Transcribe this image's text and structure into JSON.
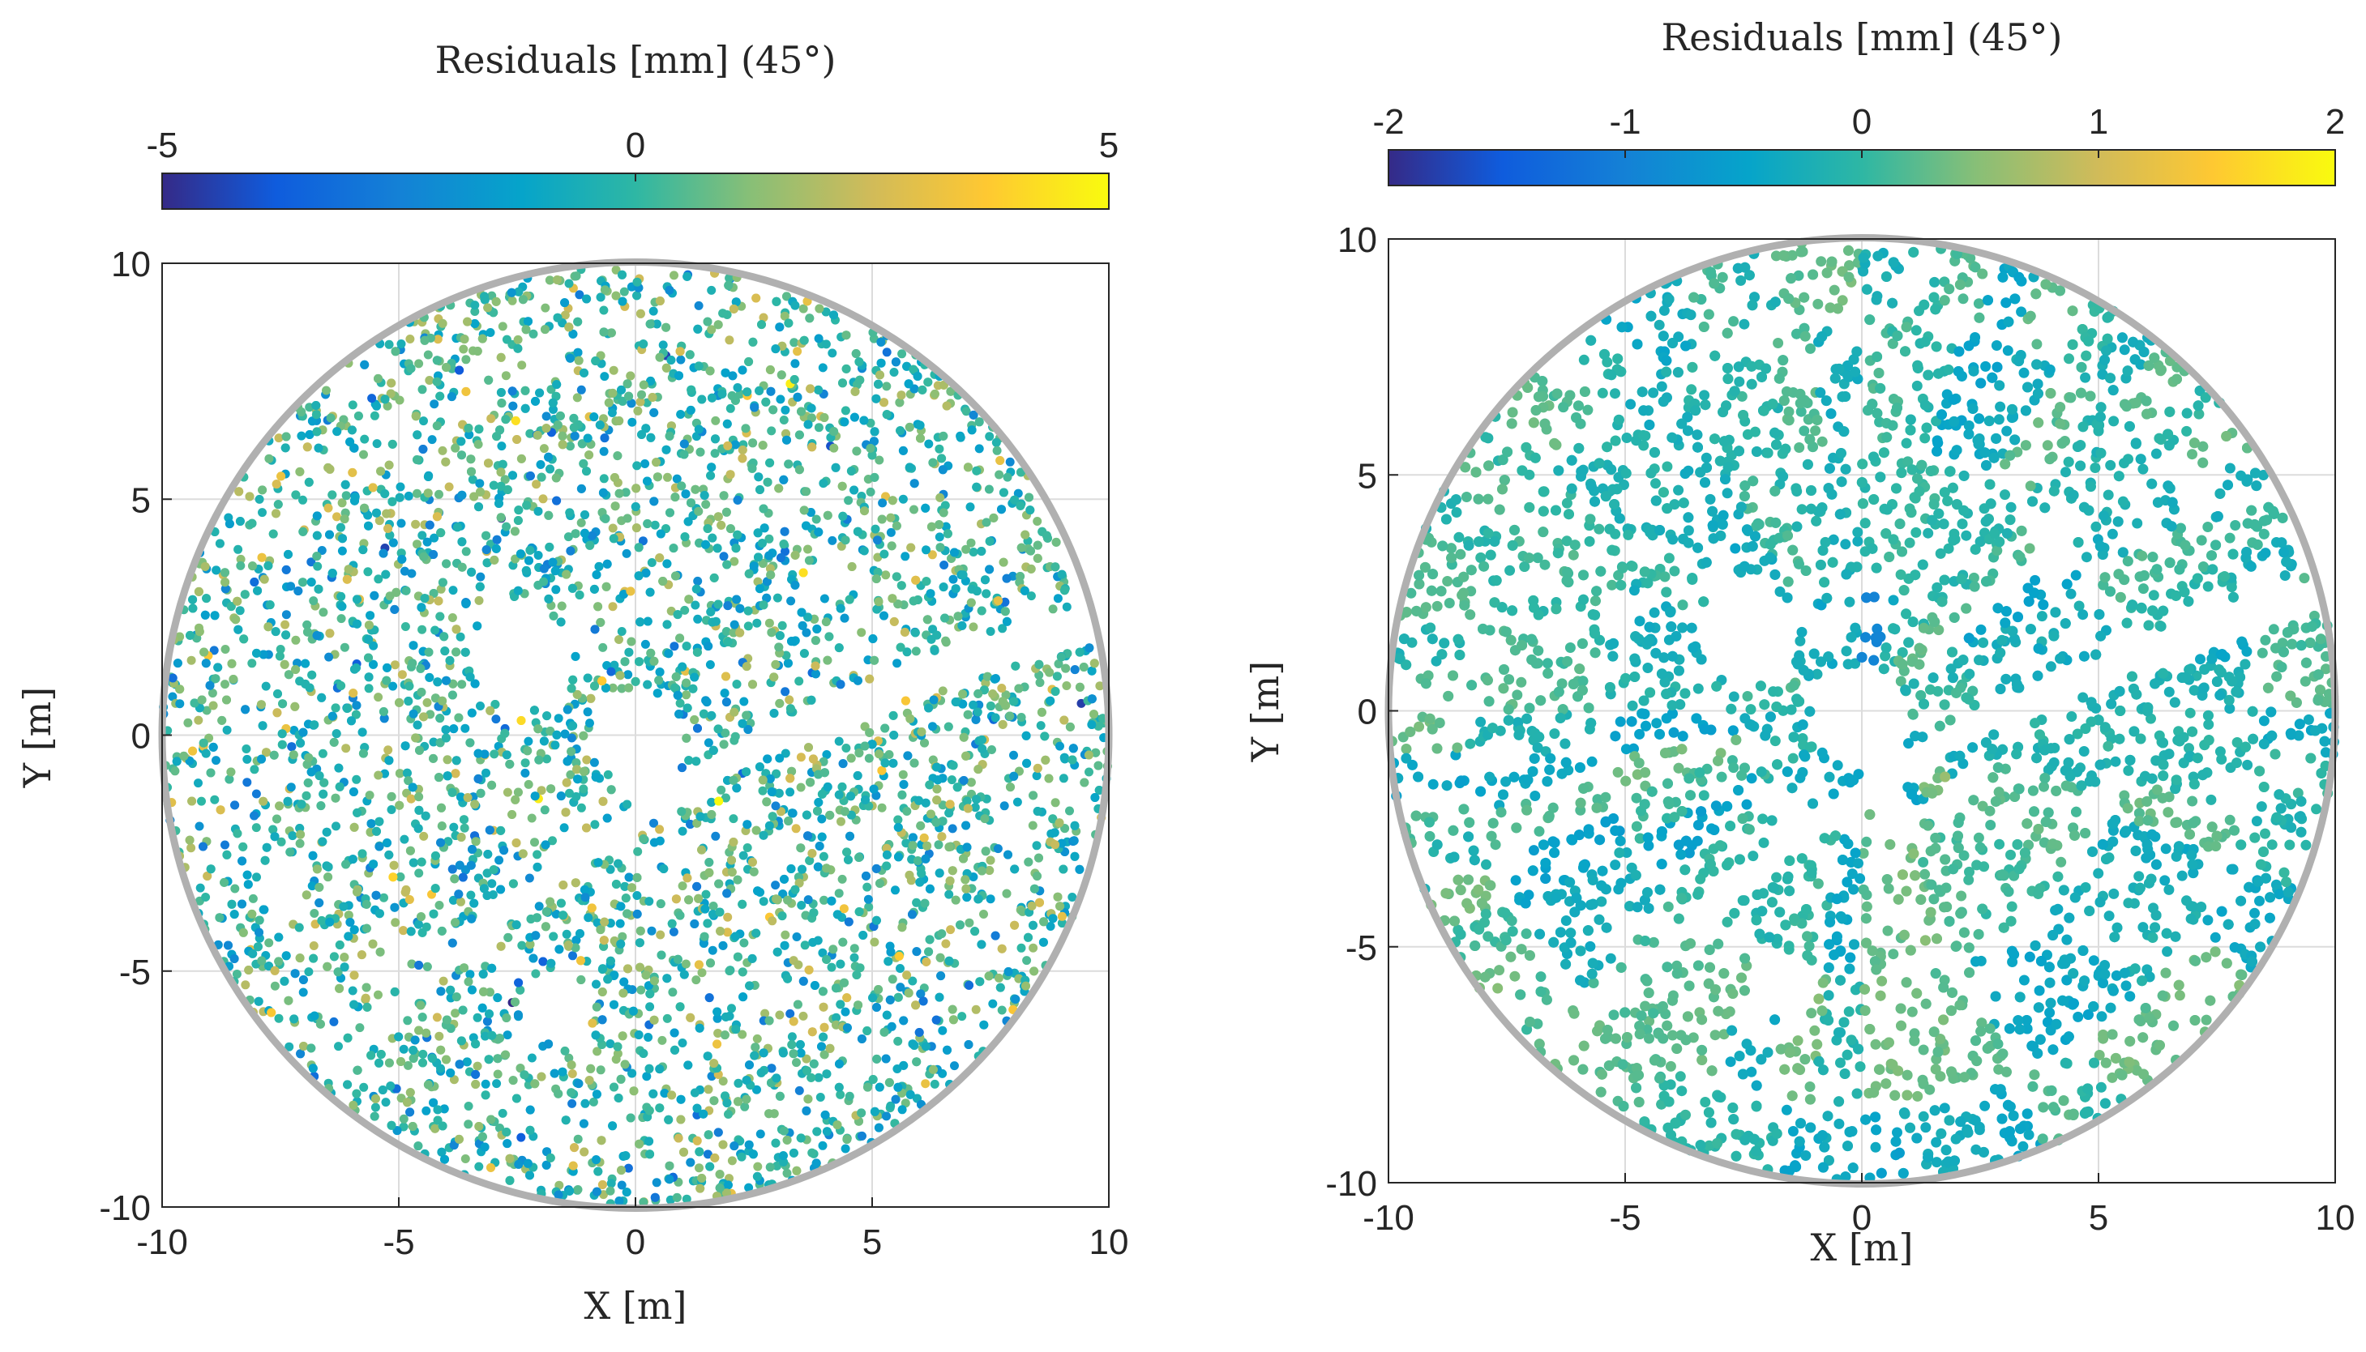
{
  "chart_data": [
    {
      "type": "scatter",
      "subtype": "colored residual map of circular dish",
      "panel": "left",
      "colorbar": {
        "label": "Residuals [mm] (45°)",
        "range": [
          -5,
          5
        ],
        "ticks": [
          -5,
          0,
          5
        ],
        "tick_labels": [
          "-5",
          "0",
          "5"
        ],
        "location": "top",
        "colormap": "parula"
      },
      "xlabel": "X [m]",
      "ylabel": "Y [m]",
      "xlim": [
        -10,
        10
      ],
      "ylim": [
        -10,
        10
      ],
      "xticks": [
        -10,
        -5,
        0,
        5,
        10
      ],
      "yticks": [
        -10,
        -5,
        0,
        5,
        10
      ],
      "xtick_labels": [
        "-10",
        "-5",
        "0",
        "5",
        "10"
      ],
      "ytick_labels": [
        "-10",
        "-5",
        "0",
        "5",
        "10"
      ],
      "grid": true,
      "dish_radius": 10,
      "center_hole_radius": 1.0,
      "secondary_holes": [
        {
          "x": -1.7,
          "y": -5.8,
          "r": 0.75
        }
      ],
      "gap_blob": {
        "x": -2.4,
        "y": 1.6,
        "r": 1.1
      },
      "slot_arc": {
        "from": [
          -6.5,
          -7.2
        ],
        "to": [
          9.8,
          2.5
        ]
      },
      "residual_spread": "high (noisy, range about -5 to 5)"
    },
    {
      "type": "scatter",
      "subtype": "colored residual map of circular dish",
      "panel": "right",
      "colorbar": {
        "label": "Residuals [mm] (45°)",
        "range": [
          -2,
          2
        ],
        "ticks": [
          -2,
          -1,
          0,
          1,
          2
        ],
        "tick_labels": [
          "-2",
          "-1",
          "0",
          "1",
          "2"
        ],
        "location": "top",
        "colormap": "parula"
      },
      "xlabel": "X [m]",
      "ylabel": "Y [m]",
      "xlim": [
        -10,
        10
      ],
      "ylim": [
        -10,
        10
      ],
      "xticks": [
        -10,
        -5,
        0,
        5,
        10
      ],
      "yticks": [
        -10,
        -5,
        0,
        5,
        10
      ],
      "xtick_labels": [
        "-10",
        "-5",
        "0",
        "5",
        "10"
      ],
      "ytick_labels": [
        "-10",
        "-5",
        "0",
        "5",
        "10"
      ],
      "grid": true,
      "dish_radius": 10,
      "center_hole_radius": 1.0,
      "secondary_holes": [
        {
          "x": -1.7,
          "y": -5.8,
          "r": 0.75
        }
      ],
      "gap_blob": {
        "x": -2.4,
        "y": 1.6,
        "r": 1.1
      },
      "slot_arc": {
        "from": [
          -6.5,
          -7.2
        ],
        "to": [
          9.8,
          2.5
        ]
      },
      "residual_spread": "low (panel-wise smooth, range about -0.6 to 0.8)"
    }
  ],
  "colors": {
    "rim": "#b0b0b0",
    "axis": "#262626",
    "grid": "#dcdcdc",
    "background": "#ffffff"
  }
}
